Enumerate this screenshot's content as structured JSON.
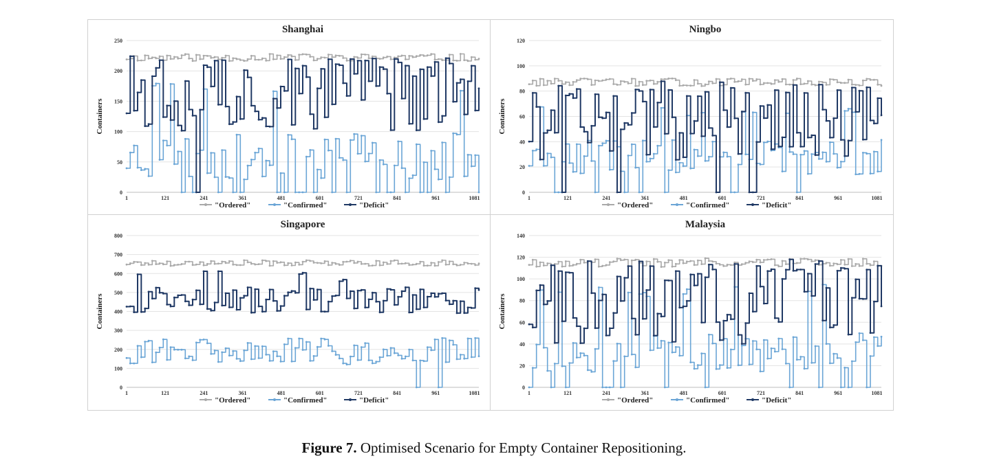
{
  "caption": {
    "label": "Figure 7.",
    "text": "Optimised Scenario for Empty Container Repositioning."
  },
  "colors": {
    "ordered": "#a9a9a9",
    "confirmed": "#6aa5d6",
    "deficit": "#1f3864",
    "grid": "#e3e3e3",
    "axis": "#bdbdbd"
  },
  "chart_data": [
    {
      "type": "line",
      "title": "Shanghai",
      "xlabel": "",
      "ylabel": "Containers",
      "ylim": [
        0,
        250
      ],
      "yticks": [
        0,
        50,
        100,
        150,
        200,
        250
      ],
      "xlim": [
        1,
        1095
      ],
      "xticks": [
        1,
        121,
        241,
        361,
        481,
        601,
        721,
        841,
        961,
        1081
      ],
      "legend": [
        "\"Ordered\"",
        "\"Confirmed\"",
        "\"Deficit\""
      ],
      "legend_position": "bottom",
      "series": [
        {
          "name": "\"Ordered\"",
          "base": 222,
          "amp": 6,
          "segments": 96,
          "drop_prob": 0.0,
          "seed": 11
        },
        {
          "name": "\"Confirmed\"",
          "base": 60,
          "amp": 40,
          "segments": 96,
          "drop_prob": 0.18,
          "spike_prob": 0.1,
          "spike": 180,
          "seed": 23
        },
        {
          "name": "\"Deficit\"",
          "base": 160,
          "amp": 60,
          "segments": 96,
          "drop_prob": 0.03,
          "spike_prob": 0.15,
          "spike": 225,
          "seed": 37
        }
      ]
    },
    {
      "type": "line",
      "title": "Ningbo",
      "xlabel": "",
      "ylabel": "Containers",
      "ylim": [
        0,
        120
      ],
      "yticks": [
        0,
        20,
        40,
        60,
        80,
        100,
        120
      ],
      "xlim": [
        1,
        1095
      ],
      "xticks": [
        1,
        121,
        241,
        361,
        481,
        601,
        721,
        841,
        961,
        1081
      ],
      "legend": [
        "\"Ordered\"",
        "\"Confirmed\"",
        "\"Deficit\""
      ],
      "legend_position": "bottom",
      "series": [
        {
          "name": "\"Ordered\"",
          "base": 87,
          "amp": 3,
          "segments": 96,
          "drop_prob": 0.0,
          "seed": 13
        },
        {
          "name": "\"Confirmed\"",
          "base": 28,
          "amp": 14,
          "segments": 96,
          "drop_prob": 0.15,
          "spike_prob": 0.1,
          "spike": 70,
          "seed": 29
        },
        {
          "name": "\"Deficit\"",
          "base": 55,
          "amp": 30,
          "segments": 96,
          "drop_prob": 0.04,
          "spike_prob": 0.12,
          "spike": 88,
          "seed": 41
        }
      ]
    },
    {
      "type": "line",
      "title": "Singapore",
      "xlabel": "",
      "ylabel": "Containers",
      "ylim": [
        0,
        800
      ],
      "yticks": [
        0,
        100,
        200,
        300,
        400,
        500,
        600,
        700,
        800
      ],
      "xlim": [
        1,
        1095
      ],
      "xticks": [
        1,
        121,
        241,
        361,
        481,
        601,
        721,
        841,
        961,
        1081
      ],
      "legend": [
        "\"Ordered\"",
        "\"Confirmed\"",
        "\"Deficit\""
      ],
      "legend_position": "bottom",
      "series": [
        {
          "name": "\"Ordered\"",
          "base": 655,
          "amp": 15,
          "segments": 96,
          "drop_prob": 0.0,
          "seed": 17
        },
        {
          "name": "\"Confirmed\"",
          "base": 190,
          "amp": 70,
          "segments": 96,
          "drop_prob": 0.03,
          "spike_prob": 0.0,
          "spike": 0,
          "seed": 31
        },
        {
          "name": "\"Deficit\"",
          "base": 460,
          "amp": 70,
          "segments": 96,
          "drop_prob": 0.0,
          "spike_prob": 0.06,
          "spike": 620,
          "seed": 43
        }
      ]
    },
    {
      "type": "line",
      "title": "Malaysia",
      "xlabel": "",
      "ylabel": "Containers",
      "ylim": [
        0,
        140
      ],
      "yticks": [
        0,
        20,
        40,
        60,
        80,
        100,
        120,
        140
      ],
      "xlim": [
        1,
        1095
      ],
      "xticks": [
        1,
        121,
        241,
        361,
        481,
        601,
        721,
        841,
        961,
        1081
      ],
      "legend": [
        "\"Ordered\"",
        "\"Confirmed\"",
        "\"Deficit\""
      ],
      "legend_position": "bottom",
      "series": [
        {
          "name": "\"Ordered\"",
          "base": 115,
          "amp": 4,
          "segments": 96,
          "drop_prob": 0.0,
          "seed": 19
        },
        {
          "name": "\"Confirmed\"",
          "base": 32,
          "amp": 18,
          "segments": 96,
          "drop_prob": 0.14,
          "spike_prob": 0.1,
          "spike": 95,
          "seed": 53
        },
        {
          "name": "\"Deficit\"",
          "base": 75,
          "amp": 35,
          "segments": 96,
          "drop_prob": 0.0,
          "spike_prob": 0.14,
          "spike": 118,
          "seed": 59
        }
      ]
    }
  ]
}
